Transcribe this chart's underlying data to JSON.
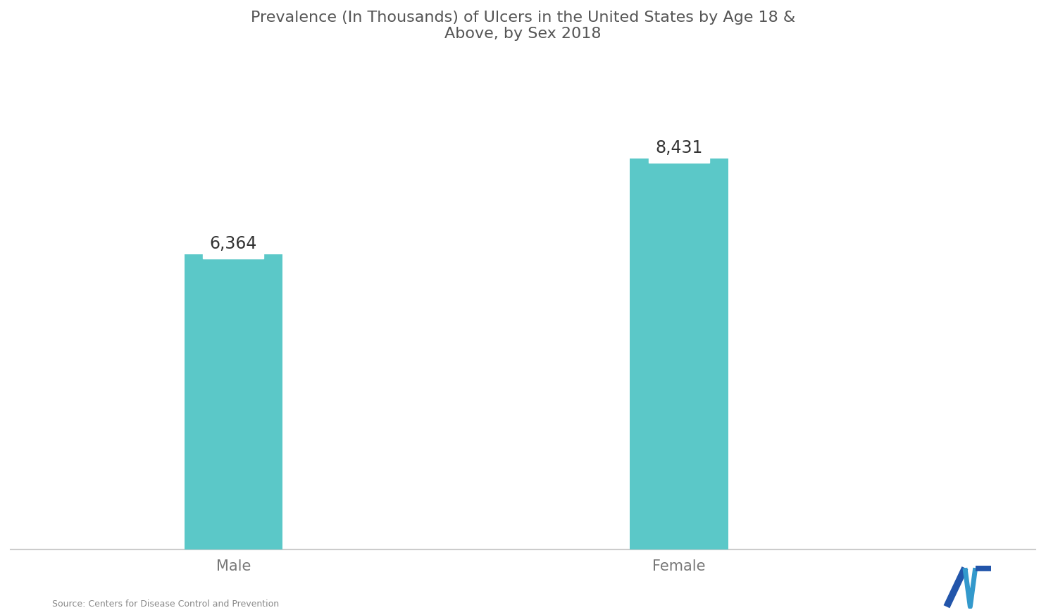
{
  "title_line1": "Prevalence (In Thousands) of Ulcers in the United States by Age 18 &",
  "title_line2": "Above, by Sex 2018",
  "categories": [
    "Male",
    "Female"
  ],
  "values": [
    6364,
    8431
  ],
  "bar_color": "#5BC8C8",
  "background_color": "#ffffff",
  "bar_label_color": "#333333",
  "bar_label_bg": "#ffffff",
  "title_color": "#555555",
  "tick_label_color": "#777777",
  "axis_line_color": "#cccccc",
  "source_text": "Source: Centers for Disease Control and Prevention",
  "ylim": [
    0,
    10500
  ],
  "bar_width": 0.22
}
